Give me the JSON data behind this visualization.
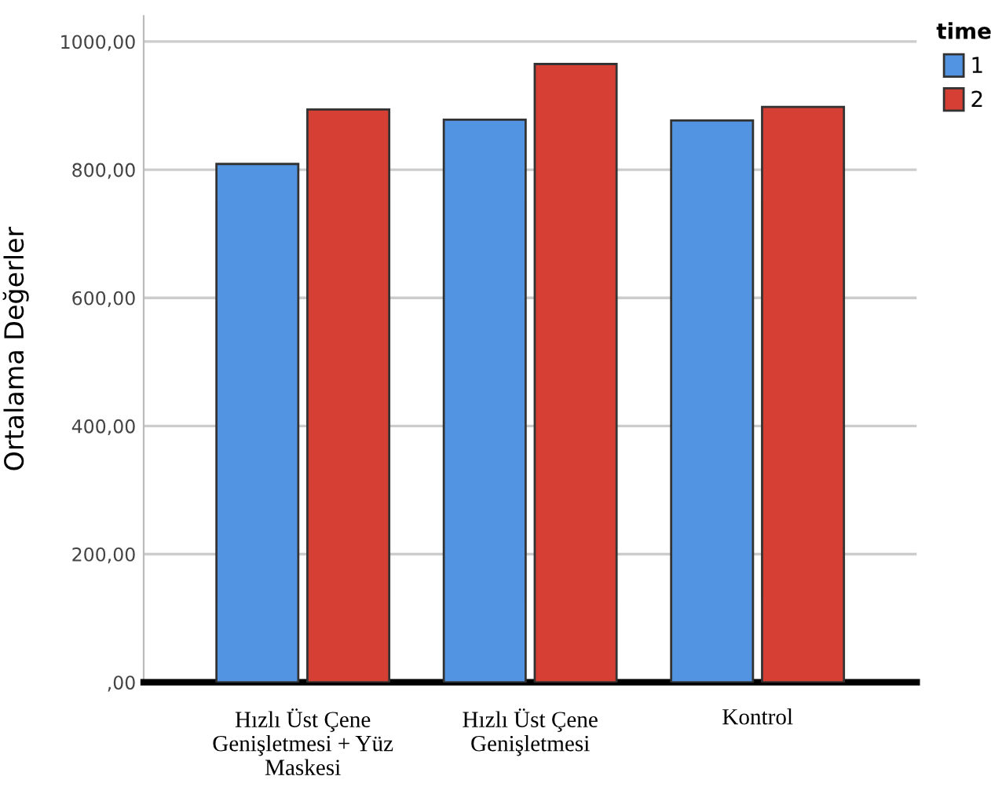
{
  "chart_data": {
    "type": "bar",
    "ylabel": "Ortalama Değerler",
    "legend_title": "time",
    "legend": "top right",
    "categories": [
      "Hızlı Üst Çene\nGenişletmesi + Yüz\nMaskesi",
      "Hızlı Üst Çene\nGenişletmesi",
      "Kontrol"
    ],
    "series": [
      {
        "name": "1",
        "color": "#5294e2",
        "values": [
          809,
          878,
          877
        ]
      },
      {
        "name": "2",
        "color": "#d63f33",
        "values": [
          894,
          965,
          898
        ]
      }
    ],
    "ylim": [
      0,
      1040
    ],
    "yticks": [
      {
        "value": 0,
        "label": ",00"
      },
      {
        "value": 200,
        "label": "200,00"
      },
      {
        "value": 400,
        "label": "400,00"
      },
      {
        "value": 600,
        "label": "600,00"
      },
      {
        "value": 800,
        "label": "800,00"
      },
      {
        "value": 1000,
        "label": "1000,00"
      }
    ],
    "grid": "y"
  }
}
